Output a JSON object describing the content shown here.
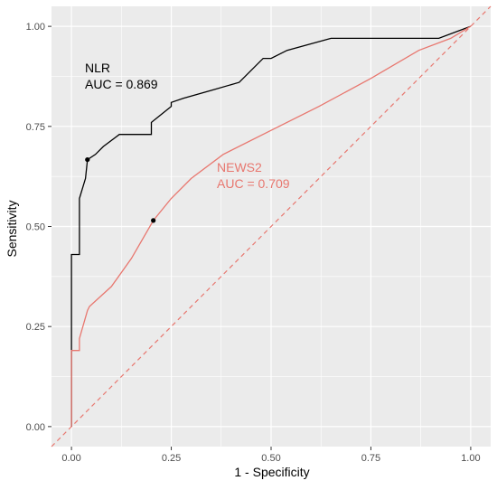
{
  "chart_data": {
    "type": "line",
    "title": "",
    "xlabel": "1 - Specificity",
    "ylabel": "Sensitivity",
    "xlim": [
      -0.05,
      1.05
    ],
    "ylim": [
      -0.05,
      1.05
    ],
    "x_ticks": [
      "0.00",
      "0.25",
      "0.50",
      "0.75",
      "1.00"
    ],
    "y_ticks": [
      "0.00",
      "0.25",
      "0.50",
      "0.75",
      "1.00"
    ],
    "grid": true,
    "panel_color": "#ebebeb",
    "series": [
      {
        "name": "NLR",
        "color": "#000000",
        "auc_label": "AUC =  0.869",
        "x": [
          0.0,
          0.0,
          0.02,
          0.02,
          0.02,
          0.035,
          0.035,
          0.04,
          0.04,
          0.06,
          0.08,
          0.08,
          0.12,
          0.12,
          0.2,
          0.2,
          0.25,
          0.25,
          0.28,
          0.35,
          0.42,
          0.48,
          0.5,
          0.54,
          0.65,
          0.8,
          0.92,
          1.0
        ],
        "y": [
          0.0,
          0.43,
          0.43,
          0.5,
          0.57,
          0.62,
          0.62,
          0.667,
          0.667,
          0.68,
          0.7,
          0.7,
          0.73,
          0.73,
          0.73,
          0.76,
          0.8,
          0.81,
          0.82,
          0.84,
          0.86,
          0.92,
          0.92,
          0.94,
          0.97,
          0.97,
          0.97,
          1.0
        ],
        "threshold": {
          "x": 0.04,
          "y": 0.667
        }
      },
      {
        "name": "NEWS2",
        "color": "#e8776f",
        "auc_label": "AUC =  0.709",
        "x": [
          0.0,
          0.0,
          0.02,
          0.02,
          0.04,
          0.045,
          0.1,
          0.15,
          0.205,
          0.25,
          0.3,
          0.38,
          0.5,
          0.62,
          0.75,
          0.87,
          0.95,
          1.0
        ],
        "y": [
          0.0,
          0.19,
          0.19,
          0.22,
          0.29,
          0.3,
          0.35,
          0.42,
          0.515,
          0.57,
          0.62,
          0.68,
          0.74,
          0.8,
          0.87,
          0.94,
          0.97,
          1.0
        ],
        "threshold": {
          "x": 0.205,
          "y": 0.515
        }
      }
    ],
    "reference_line": {
      "from": [
        0,
        0
      ],
      "to": [
        1,
        1
      ],
      "color": "#e8776f",
      "style": "dashed"
    }
  }
}
